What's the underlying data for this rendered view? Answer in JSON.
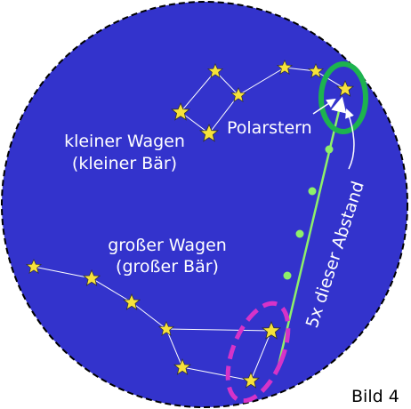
{
  "labels": {
    "little_dipper": "kleiner Wagen",
    "little_bear": "(kleiner Bär)",
    "big_dipper": "großer Wagen",
    "big_bear": "(großer Bär)",
    "polaris": "Polarstern",
    "distance": "5x dieser Abstand",
    "figure": "Bild 4"
  }
}
